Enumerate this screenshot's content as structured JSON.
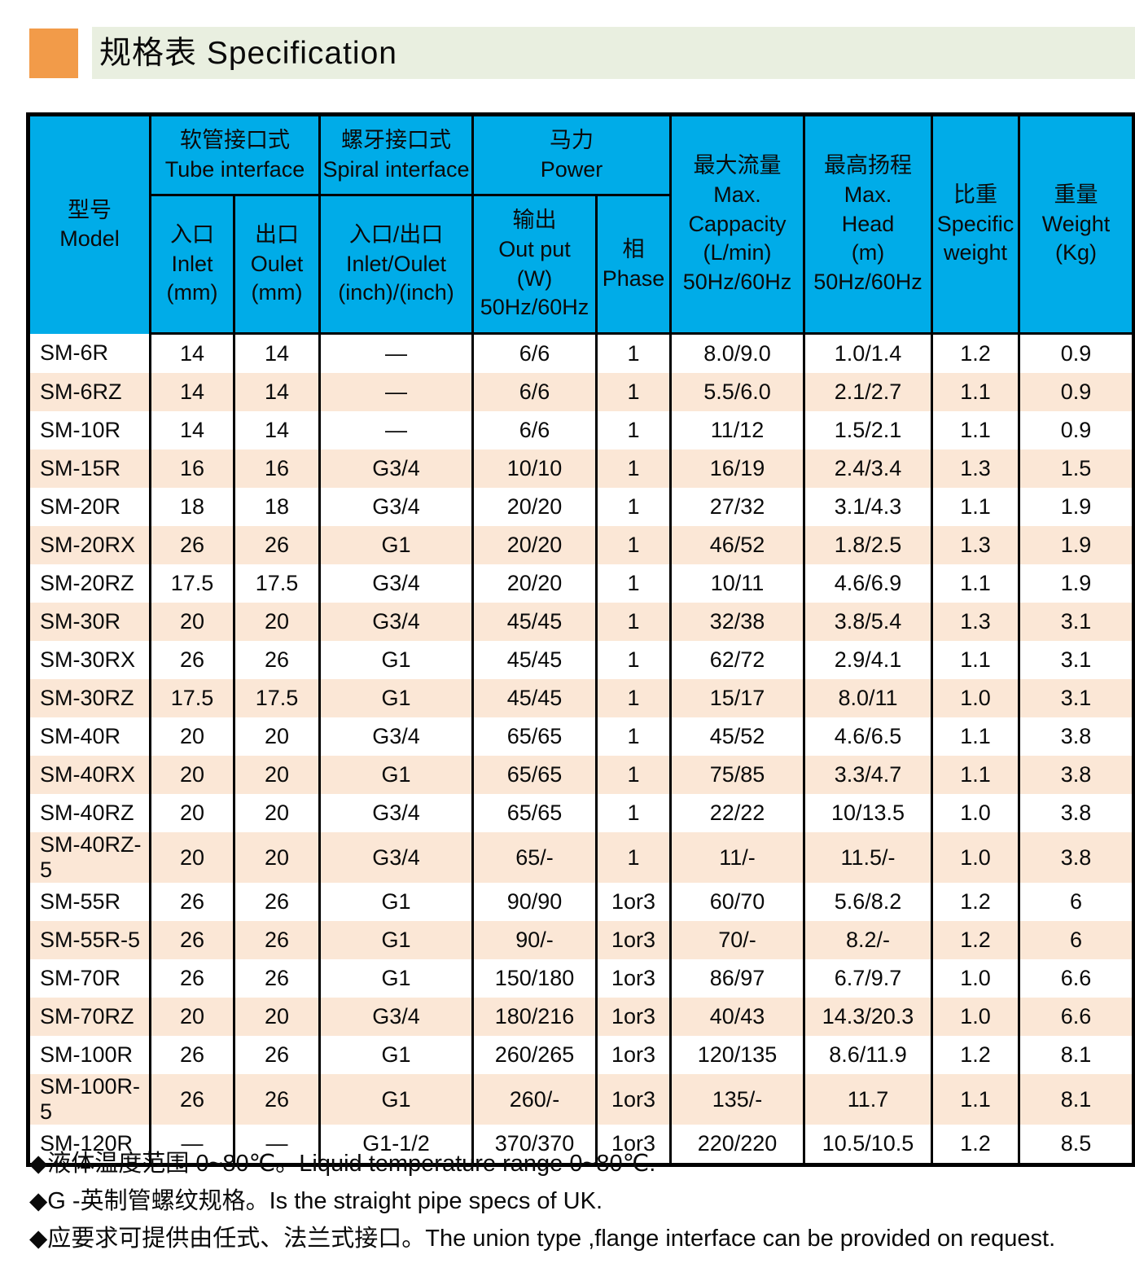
{
  "page": {
    "title": "规格表 Specification"
  },
  "colors": {
    "accent_orange": "#F29B49",
    "title_band_green": "#E9EFE0",
    "header_blue": "#00ACE8",
    "row_alt_peach": "#FBE7D6",
    "border_black": "#000000"
  },
  "table": {
    "header": {
      "model": [
        "型号",
        "Model"
      ],
      "tube_group": [
        "软管接口式",
        "Tube interface"
      ],
      "tube_inlet": [
        "入口",
        "Inlet",
        "(mm)"
      ],
      "tube_outlet": [
        "出口",
        "Oulet",
        "(mm)"
      ],
      "spiral_group": [
        "螺牙接口式",
        "Spiral interface"
      ],
      "spiral_io": [
        "入口/出口",
        "Inlet/Oulet",
        "(inch)/(inch)"
      ],
      "power_group": [
        "马力",
        "Power"
      ],
      "power_output": [
        "输出",
        "Out put",
        "(W)",
        "50Hz/60Hz"
      ],
      "phase": [
        "相",
        "Phase"
      ],
      "max_capacity": [
        "最大流量",
        "Max.",
        "Cappacity",
        "(L/min)",
        "50Hz/60Hz"
      ],
      "max_head": [
        "最高扬程",
        "Max.",
        "Head",
        "(m)",
        "50Hz/60Hz"
      ],
      "specific_weight": [
        "比重",
        "Specific",
        "weight"
      ],
      "weight": [
        "重量",
        "Weight",
        "(Kg)"
      ]
    },
    "rows": [
      [
        "SM-6R",
        "14",
        "14",
        "—",
        "6/6",
        "1",
        "8.0/9.0",
        "1.0/1.4",
        "1.2",
        "0.9"
      ],
      [
        "SM-6RZ",
        "14",
        "14",
        "—",
        "6/6",
        "1",
        "5.5/6.0",
        "2.1/2.7",
        "1.1",
        "0.9"
      ],
      [
        "SM-10R",
        "14",
        "14",
        "—",
        "6/6",
        "1",
        "11/12",
        "1.5/2.1",
        "1.1",
        "0.9"
      ],
      [
        "SM-15R",
        "16",
        "16",
        "G3/4",
        "10/10",
        "1",
        "16/19",
        "2.4/3.4",
        "1.3",
        "1.5"
      ],
      [
        "SM-20R",
        "18",
        "18",
        "G3/4",
        "20/20",
        "1",
        "27/32",
        "3.1/4.3",
        "1.1",
        "1.9"
      ],
      [
        "SM-20RX",
        "26",
        "26",
        "G1",
        "20/20",
        "1",
        "46/52",
        "1.8/2.5",
        "1.3",
        "1.9"
      ],
      [
        "SM-20RZ",
        "17.5",
        "17.5",
        "G3/4",
        "20/20",
        "1",
        "10/11",
        "4.6/6.9",
        "1.1",
        "1.9"
      ],
      [
        "SM-30R",
        "20",
        "20",
        "G3/4",
        "45/45",
        "1",
        "32/38",
        "3.8/5.4",
        "1.3",
        "3.1"
      ],
      [
        "SM-30RX",
        "26",
        "26",
        "G1",
        "45/45",
        "1",
        "62/72",
        "2.9/4.1",
        "1.1",
        "3.1"
      ],
      [
        "SM-30RZ",
        "17.5",
        "17.5",
        "G1",
        "45/45",
        "1",
        "15/17",
        "8.0/11",
        "1.0",
        "3.1"
      ],
      [
        "SM-40R",
        "20",
        "20",
        "G3/4",
        "65/65",
        "1",
        "45/52",
        "4.6/6.5",
        "1.1",
        "3.8"
      ],
      [
        "SM-40RX",
        "20",
        "20",
        "G1",
        "65/65",
        "1",
        "75/85",
        "3.3/4.7",
        "1.1",
        "3.8"
      ],
      [
        "SM-40RZ",
        "20",
        "20",
        "G3/4",
        "65/65",
        "1",
        "22/22",
        "10/13.5",
        "1.0",
        "3.8"
      ],
      [
        "SM-40RZ-5",
        "20",
        "20",
        "G3/4",
        "65/-",
        "1",
        "11/-",
        "11.5/-",
        "1.0",
        "3.8"
      ],
      [
        "SM-55R",
        "26",
        "26",
        "G1",
        "90/90",
        "1or3",
        "60/70",
        "5.6/8.2",
        "1.2",
        "6"
      ],
      [
        "SM-55R-5",
        "26",
        "26",
        "G1",
        "90/-",
        "1or3",
        "70/-",
        "8.2/-",
        "1.2",
        "6"
      ],
      [
        "SM-70R",
        "26",
        "26",
        "G1",
        "150/180",
        "1or3",
        "86/97",
        "6.7/9.7",
        "1.0",
        "6.6"
      ],
      [
        "SM-70RZ",
        "20",
        "20",
        "G3/4",
        "180/216",
        "1or3",
        "40/43",
        "14.3/20.3",
        "1.0",
        "6.6"
      ],
      [
        "SM-100R",
        "26",
        "26",
        "G1",
        "260/265",
        "1or3",
        "120/135",
        "8.6/11.9",
        "1.2",
        "8.1"
      ],
      [
        "SM-100R-5",
        "26",
        "26",
        "G1",
        "260/-",
        "1or3",
        "135/-",
        "11.7",
        "1.1",
        "8.1"
      ],
      [
        "SM-120R",
        "—",
        "—",
        "G1-1/2",
        "370/370",
        "1or3",
        "220/220",
        "10.5/10.5",
        "1.2",
        "8.5"
      ]
    ]
  },
  "notes": [
    "◆液体温度范围 0~80℃。Liquid temperature range 0~80℃.",
    "◆G -英制管螺纹规格。Is the straight pipe specs of UK.",
    "◆应要求可提供由任式、法兰式接口。The union type ,flange interface can be provided on request."
  ]
}
